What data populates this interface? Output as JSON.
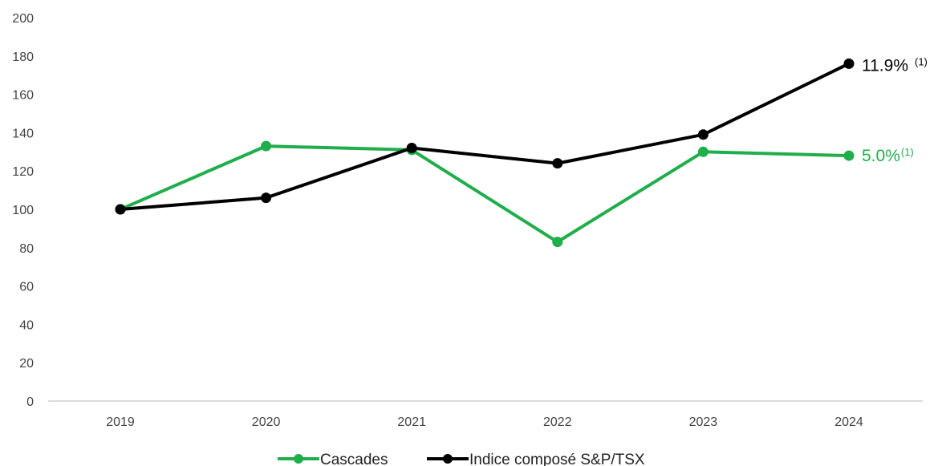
{
  "chart_data": {
    "type": "line",
    "categories": [
      "2019",
      "2020",
      "2021",
      "2022",
      "2023",
      "2024"
    ],
    "ylim": [
      0,
      200
    ],
    "yticks": [
      "0",
      "20",
      "40",
      "60",
      "80",
      "100",
      "120",
      "140",
      "160",
      "180",
      "200"
    ],
    "grid": false,
    "legend_position": "bottom",
    "series": [
      {
        "name": "Cascades",
        "color": "#1fae4b",
        "values": [
          100,
          133,
          131,
          83,
          130,
          128
        ],
        "end_label": {
          "value": "5.0%",
          "note": "(1)"
        }
      },
      {
        "name": "Indice composé S&P/TSX",
        "color": "#000000",
        "values": [
          100,
          106,
          132,
          124,
          139,
          176
        ],
        "end_label": {
          "value": "11.9%",
          "note": "(1)"
        }
      }
    ]
  }
}
